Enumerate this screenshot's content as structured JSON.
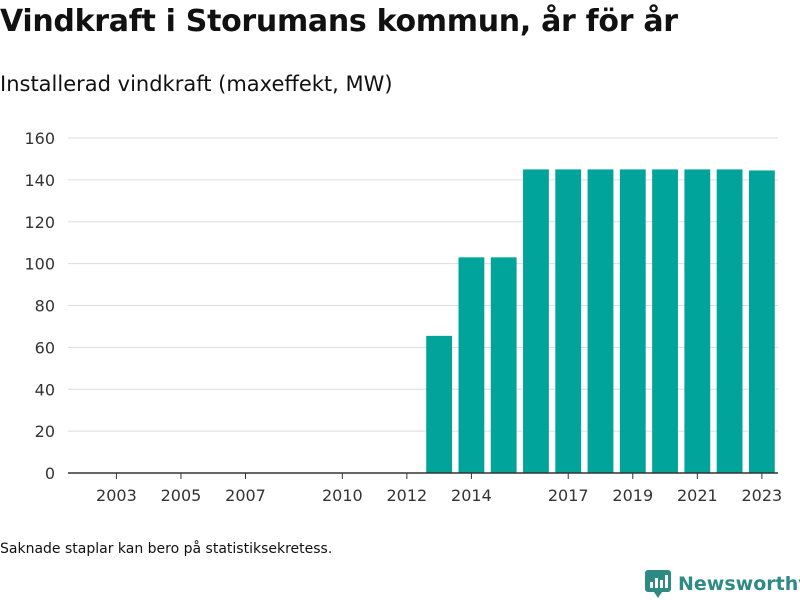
{
  "header": {
    "title": "Vindkraft i Storumans kommun, år för år",
    "subtitle": "Installerad vindkraft (maxeffekt, MW)"
  },
  "footer": {
    "note": "Saknade staplar kan bero på statistiksekretess.",
    "brand_name": "Newsworthy",
    "brand_icon": "newsworthy-logo-icon"
  },
  "colors": {
    "bar": "#00a49a",
    "grid": "#dddddd",
    "axis": "#333333",
    "brand": "#2e8b84"
  },
  "chart_data": {
    "type": "bar",
    "title": "Vindkraft i Storumans kommun, år för år",
    "subtitle": "Installerad vindkraft (maxeffekt, MW)",
    "x": [
      2002,
      2003,
      2004,
      2005,
      2006,
      2007,
      2008,
      2009,
      2010,
      2011,
      2012,
      2013,
      2014,
      2015,
      2016,
      2017,
      2018,
      2019,
      2020,
      2021,
      2022,
      2023
    ],
    "values": [
      0,
      0,
      0,
      0,
      0,
      0,
      0,
      0,
      0,
      0,
      0,
      65.5,
      103,
      103,
      145,
      145,
      145,
      145,
      145,
      145,
      145,
      144.5
    ],
    "x_tick_labels": [
      2003,
      2005,
      2007,
      2010,
      2012,
      2014,
      2017,
      2019,
      2021,
      2023
    ],
    "y_ticks": [
      0,
      20,
      40,
      60,
      80,
      100,
      120,
      140,
      160
    ],
    "ylim": [
      0,
      160
    ],
    "xlabel": "",
    "ylabel": "",
    "grid": true,
    "legend": "none"
  }
}
